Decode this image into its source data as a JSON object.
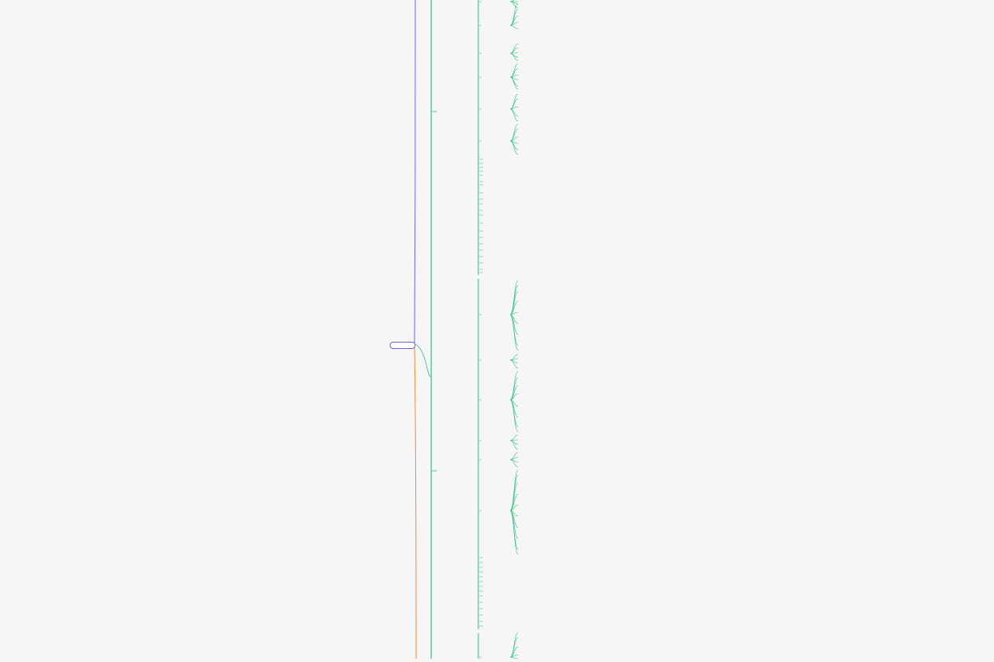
{
  "mindmap": {
    "root": "",
    "colors": {
      "violet": "#6c63ff",
      "orange": "#f08a3c",
      "green": "#2ec27e",
      "rootBorder": "#7a5fd8"
    },
    "branches": [],
    "subtopics": []
  }
}
